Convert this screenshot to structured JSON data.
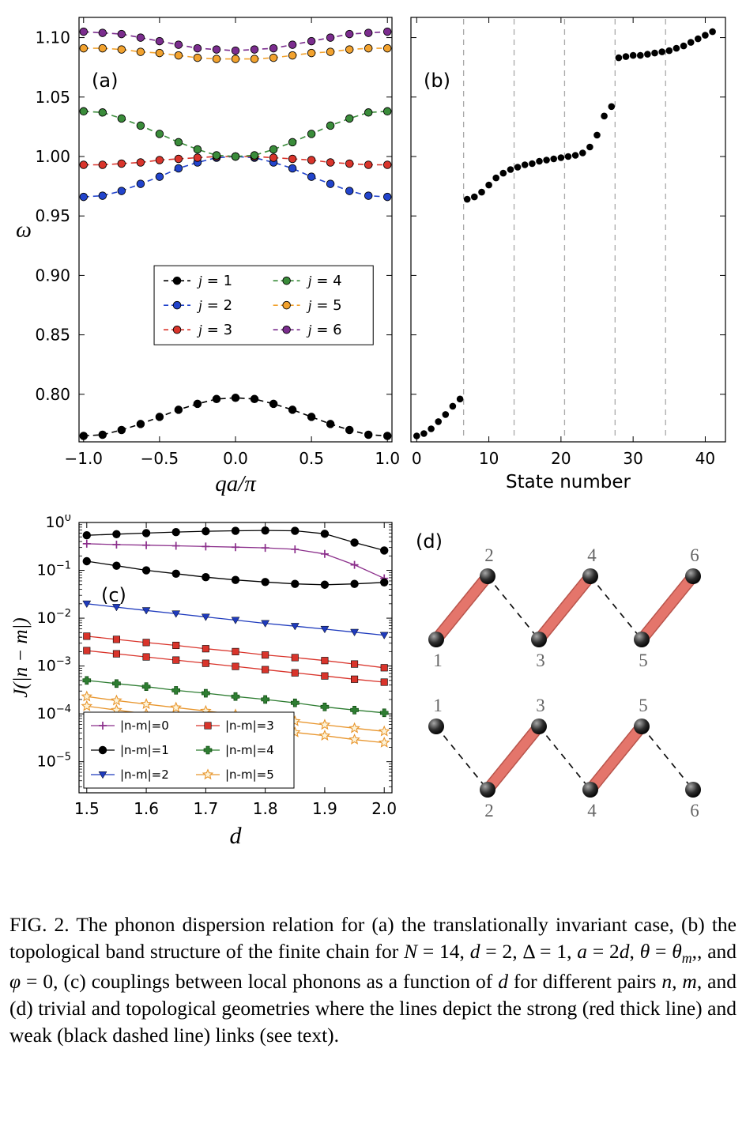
{
  "figure": {
    "panel_labels": {
      "a": "(a)",
      "b": "(b)",
      "c": "(c)",
      "d": "(d)"
    }
  },
  "chart_data": [
    {
      "id": "a",
      "type": "line",
      "xlabel": "qa/π",
      "ylabel": "ω",
      "xlim": [
        -1.03,
        1.03
      ],
      "ylim": [
        0.76,
        1.117
      ],
      "line_style": "dashed",
      "marker": "circle",
      "legend": {
        "location": "center",
        "columns": 2
      },
      "xticks": [
        {
          "v": -1.0,
          "label": "−1.0"
        },
        {
          "v": -0.5,
          "label": "−0.5"
        },
        {
          "v": 0.0,
          "label": "0.0"
        },
        {
          "v": 0.5,
          "label": "0.5"
        },
        {
          "v": 1.0,
          "label": "1.0"
        }
      ],
      "yticks": [
        {
          "v": 0.8,
          "label": "0.80"
        },
        {
          "v": 0.85,
          "label": "0.85"
        },
        {
          "v": 0.9,
          "label": "0.90"
        },
        {
          "v": 0.95,
          "label": "0.95"
        },
        {
          "v": 1.0,
          "label": "1.00"
        },
        {
          "v": 1.05,
          "label": "1.05"
        },
        {
          "v": 1.1,
          "label": "1.10"
        }
      ],
      "x": [
        -1.0,
        -0.875,
        -0.75,
        -0.625,
        -0.5,
        -0.375,
        -0.25,
        -0.125,
        0.0,
        0.125,
        0.25,
        0.375,
        0.5,
        0.625,
        0.75,
        0.875,
        1.0
      ],
      "series": [
        {
          "name": "j = 1",
          "color": "#000000",
          "values": [
            0.765,
            0.766,
            0.77,
            0.775,
            0.781,
            0.787,
            0.792,
            0.796,
            0.797,
            0.796,
            0.792,
            0.787,
            0.781,
            0.775,
            0.77,
            0.766,
            0.765
          ]
        },
        {
          "name": "j = 2",
          "color": "#2244cc",
          "values": [
            0.966,
            0.967,
            0.971,
            0.977,
            0.983,
            0.99,
            0.995,
            0.999,
            1.0,
            0.999,
            0.995,
            0.99,
            0.983,
            0.977,
            0.971,
            0.967,
            0.966
          ]
        },
        {
          "name": "j = 3",
          "color": "#d9342b",
          "values": [
            0.993,
            0.993,
            0.994,
            0.995,
            0.997,
            0.998,
            0.999,
            1.0,
            1.0,
            1.0,
            0.999,
            0.998,
            0.997,
            0.995,
            0.994,
            0.993,
            0.993
          ]
        },
        {
          "name": "j = 4",
          "color": "#3a8c3a",
          "values": [
            1.038,
            1.037,
            1.032,
            1.026,
            1.019,
            1.012,
            1.006,
            1.001,
            1.0,
            1.001,
            1.006,
            1.012,
            1.019,
            1.026,
            1.032,
            1.037,
            1.038
          ]
        },
        {
          "name": "j = 5",
          "color": "#f2a22e",
          "values": [
            1.091,
            1.091,
            1.09,
            1.088,
            1.087,
            1.085,
            1.083,
            1.082,
            1.082,
            1.082,
            1.083,
            1.085,
            1.087,
            1.088,
            1.09,
            1.091,
            1.091
          ]
        },
        {
          "name": "j = 6",
          "color": "#7b2d8e",
          "values": [
            1.105,
            1.104,
            1.103,
            1.1,
            1.097,
            1.094,
            1.091,
            1.09,
            1.089,
            1.09,
            1.091,
            1.094,
            1.097,
            1.1,
            1.103,
            1.104,
            1.105
          ]
        }
      ]
    },
    {
      "id": "b",
      "type": "scatter",
      "xlabel": "State number",
      "xlim": [
        -0.8,
        42.8
      ],
      "ylim": [
        0.76,
        1.117
      ],
      "x_description": "state index 0 to 41",
      "xticks": [
        {
          "v": 0,
          "label": "0"
        },
        {
          "v": 10,
          "label": "10"
        },
        {
          "v": 20,
          "label": "20"
        },
        {
          "v": 30,
          "label": "30"
        },
        {
          "v": 40,
          "label": "40"
        }
      ],
      "yticks_v": [
        0.8,
        0.85,
        0.9,
        0.95,
        1.0,
        1.05,
        1.1
      ],
      "gridlines_x": [
        6.5,
        13.5,
        20.5,
        27.5,
        34.5
      ],
      "point_color": "#000000",
      "y": [
        0.765,
        0.767,
        0.771,
        0.777,
        0.783,
        0.79,
        0.796,
        0.964,
        0.966,
        0.97,
        0.976,
        0.982,
        0.986,
        0.989,
        0.991,
        0.993,
        0.994,
        0.996,
        0.997,
        0.998,
        0.999,
        1.0,
        1.001,
        1.003,
        1.008,
        1.018,
        1.034,
        1.042,
        1.083,
        1.084,
        1.085,
        1.085,
        1.086,
        1.087,
        1.088,
        1.089,
        1.091,
        1.093,
        1.096,
        1.099,
        1.102,
        1.105
      ]
    },
    {
      "id": "c",
      "type": "line-log",
      "xlabel": "d",
      "ylabel": "J(|n − m|)",
      "xlim": [
        1.487,
        2.013
      ],
      "ylim_exp": [
        -5.65,
        0
      ],
      "xticks": [
        {
          "v": 1.5,
          "label": "1.5"
        },
        {
          "v": 1.6,
          "label": "1.6"
        },
        {
          "v": 1.7,
          "label": "1.7"
        },
        {
          "v": 1.8,
          "label": "1.8"
        },
        {
          "v": 1.9,
          "label": "1.9"
        },
        {
          "v": 2.0,
          "label": "2.0"
        }
      ],
      "ytick_exponents": [
        0,
        -1,
        -2,
        -3,
        -4,
        -5
      ],
      "x": [
        1.5,
        1.55,
        1.6,
        1.65,
        1.7,
        1.75,
        1.8,
        1.85,
        1.9,
        1.95,
        2.0
      ],
      "series": [
        {
          "name": "|n-m|=0",
          "color": "#8b2f8b",
          "marker": "plus",
          "values": [
            0.36,
            0.345,
            0.335,
            0.325,
            0.315,
            0.305,
            0.295,
            0.275,
            0.22,
            0.13,
            0.068
          ]
        },
        {
          "name": "|n-m|=1 strong",
          "color": "#000000",
          "marker": "circle",
          "values": [
            0.54,
            0.57,
            0.6,
            0.63,
            0.655,
            0.67,
            0.68,
            0.67,
            0.58,
            0.38,
            0.26
          ]
        },
        {
          "name": "|n-m|=1 weak",
          "color": "#000000",
          "marker": "circle",
          "values": [
            0.155,
            0.125,
            0.1,
            0.085,
            0.072,
            0.063,
            0.057,
            0.052,
            0.05,
            0.052,
            0.056
          ]
        },
        {
          "name": "|n-m|=2",
          "color": "#1f3bbd",
          "marker": "tridown",
          "values": [
            0.02,
            0.017,
            0.0145,
            0.0124,
            0.0106,
            0.0091,
            0.0078,
            0.0068,
            0.0059,
            0.0051,
            0.0044
          ]
        },
        {
          "name": "|n-m|=3 strong",
          "color": "#d9342b",
          "marker": "square",
          "values": [
            0.0042,
            0.0036,
            0.0031,
            0.0027,
            0.0023,
            0.002,
            0.0017,
            0.0015,
            0.0013,
            0.0011,
            0.00092
          ]
        },
        {
          "name": "|n-m|=3 weak",
          "color": "#d9342b",
          "marker": "square",
          "values": [
            0.0021,
            0.0018,
            0.00155,
            0.00133,
            0.00114,
            0.00098,
            0.00084,
            0.00072,
            0.00062,
            0.00053,
            0.00046
          ]
        },
        {
          "name": "|n-m|=4",
          "color": "#2e7d32",
          "marker": "fplus",
          "values": [
            0.0005,
            0.00043,
            0.00037,
            0.00031,
            0.00027,
            0.00023,
            0.0002,
            0.00017,
            0.00014,
            0.00012,
            0.000105
          ]
        },
        {
          "name": "|n-m|=5 strong",
          "color": "#e8962e",
          "marker": "star",
          "values": [
            0.00023,
            0.00019,
            0.00016,
            0.000135,
            0.000115,
            9.7e-05,
            8.2e-05,
            7e-05,
            5.9e-05,
            5e-05,
            4.3e-05
          ]
        },
        {
          "name": "|n-m|=5 weak",
          "color": "#e8962e",
          "marker": "star",
          "values": [
            0.000145,
            0.00012,
            0.0001,
            8.4e-05,
            7e-05,
            5.9e-05,
            4.9e-05,
            4.1e-05,
            3.5e-05,
            2.9e-05,
            2.5e-05
          ]
        }
      ],
      "legend_entries": [
        {
          "label": "|n-m|=0",
          "color": "#8b2f8b",
          "marker": "plus"
        },
        {
          "label": "|n-m|=1",
          "color": "#000000",
          "marker": "circle"
        },
        {
          "label": "|n-m|=2",
          "color": "#1f3bbd",
          "marker": "tridown"
        },
        {
          "label": "|n-m|=3",
          "color": "#d9342b",
          "marker": "square"
        },
        {
          "label": "|n-m|=4",
          "color": "#2e7d32",
          "marker": "fplus"
        },
        {
          "label": "|n-m|=5",
          "color": "#e8962e",
          "marker": "star"
        }
      ]
    }
  ],
  "diagram": {
    "label": "(d)",
    "strong_color": "#e4756b",
    "strong_edge_color": "#b9554c",
    "weak_color": "#111111",
    "node_label_color": "#666666",
    "chains": [
      {
        "name": "trivial",
        "top_row": [
          2,
          4,
          6
        ],
        "bottom_row": [
          1,
          3,
          5
        ],
        "strong_bonds": [
          [
            1,
            2
          ],
          [
            3,
            4
          ],
          [
            5,
            6
          ]
        ],
        "weak_bonds": [
          [
            2,
            3
          ],
          [
            4,
            5
          ]
        ]
      },
      {
        "name": "topological",
        "top_row": [
          1,
          3,
          5
        ],
        "bottom_row": [
          2,
          4,
          6
        ],
        "strong_bonds": [
          [
            2,
            3
          ],
          [
            4,
            5
          ]
        ],
        "weak_bonds": [
          [
            1,
            2
          ],
          [
            3,
            4
          ],
          [
            5,
            6
          ]
        ]
      }
    ]
  },
  "caption": {
    "fig_label": "FIG. 2.",
    "parts": [
      {
        "t": "  The phonon dispersion relation for (a) the translationally invariant case, (b) the topological band structure of the finite chain for ",
        "i": false
      },
      {
        "t": "N",
        "i": true
      },
      {
        "t": " = 14, ",
        "i": false
      },
      {
        "t": "d",
        "i": true
      },
      {
        "t": " = 2, Δ = 1, ",
        "i": false
      },
      {
        "t": "a",
        "i": true
      },
      {
        "t": " = 2",
        "i": false
      },
      {
        "t": "d",
        "i": true
      },
      {
        "t": ", ",
        "i": false
      },
      {
        "t": "θ",
        "i": true
      },
      {
        "t": " = ",
        "i": false
      },
      {
        "t": "θ",
        "i": true
      },
      {
        "t": "m",
        "i": true,
        "sub": true
      },
      {
        "t": ",, and ",
        "i": false
      },
      {
        "t": "φ",
        "i": true
      },
      {
        "t": " = 0, (c) couplings between local phonons as a function of ",
        "i": false
      },
      {
        "t": "d",
        "i": true
      },
      {
        "t": " for different pairs ",
        "i": false
      },
      {
        "t": "n, m",
        "i": true
      },
      {
        "t": ", and (d) trivial and topological geometries where the lines depict the strong (red thick line) and weak (black dashed line) links (see text).",
        "i": false
      }
    ]
  }
}
